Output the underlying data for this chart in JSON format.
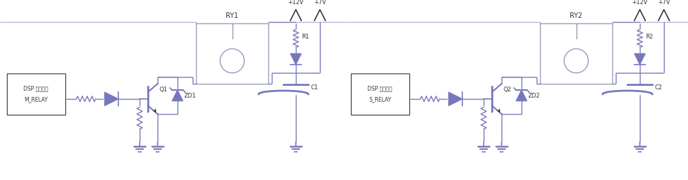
{
  "bg_color": "#ffffff",
  "line_color": "#7777bb",
  "relay_color": "#9999bb",
  "dark_color": "#333333",
  "figsize": [
    10.0,
    2.62
  ],
  "dpi": 100,
  "circuits": [
    {
      "ox": 0.0,
      "dsp_text1": "DSP 控制信号",
      "dsp_text2": "M_RELAY",
      "relay_label": "RY1",
      "q_label": "Q1",
      "zd_label": "ZD1",
      "r_label": "R1",
      "c_label": "C1"
    },
    {
      "ox": 0.5,
      "dsp_text1": "DSP 控制信号",
      "dsp_text2": "S_RELAY",
      "relay_label": "RY2",
      "q_label": "Q2",
      "zd_label": "ZD2",
      "r_label": "R2",
      "c_label": "C2"
    }
  ]
}
